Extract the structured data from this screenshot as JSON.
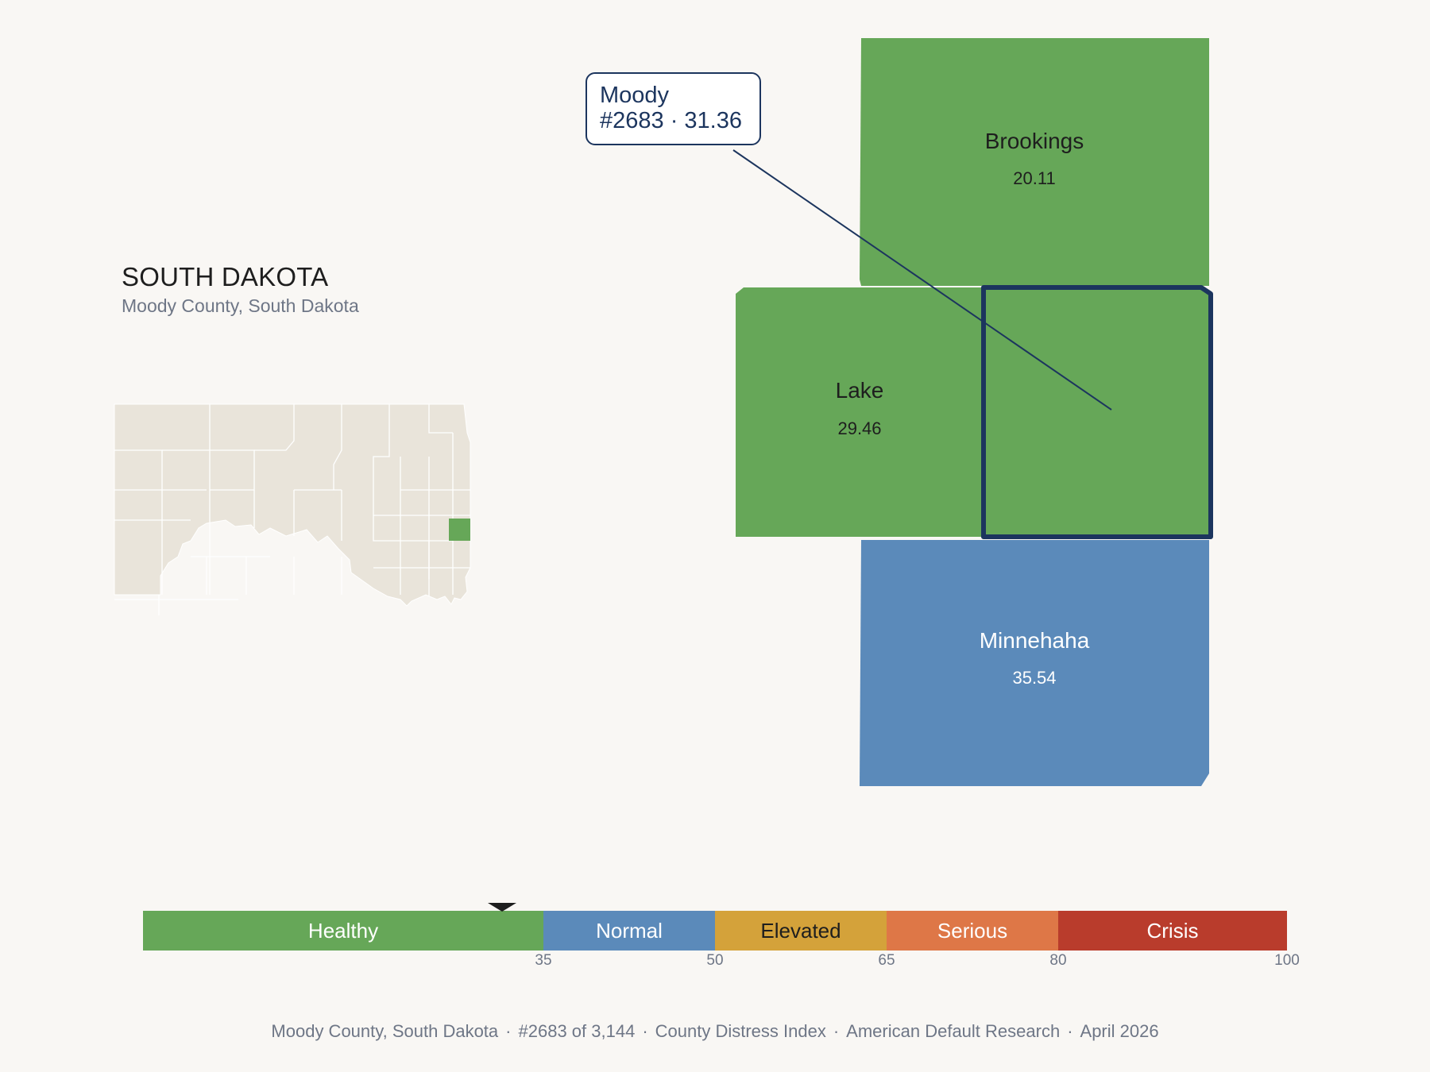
{
  "header": {
    "state": "SOUTH DAKOTA",
    "subtitle": "Moody County, South Dakota"
  },
  "colors": {
    "healthy": "#66a758",
    "normal": "#5b8aba",
    "elevated": "#d4a23a",
    "serious": "#de7747",
    "crisis": "#b93c2c",
    "highlight_outline": "#1c355e",
    "inset_fill": "#e9e4da"
  },
  "counties": [
    {
      "name": "Brookings",
      "value": "20.11",
      "category": "healthy"
    },
    {
      "name": "Lake",
      "value": "29.46",
      "category": "healthy"
    },
    {
      "name": "Moody",
      "value": "",
      "category": "healthy"
    },
    {
      "name": "Minnehaha",
      "value": "35.54",
      "category": "normal"
    }
  ],
  "callout": {
    "name": "Moody",
    "detail": "#2683 · 31.36"
  },
  "legend": {
    "marker_value": 31.36,
    "segments": [
      {
        "label": "Healthy",
        "from": 0,
        "to": 35,
        "color": "#66a758"
      },
      {
        "label": "Normal",
        "from": 35,
        "to": 50,
        "color": "#5b8aba"
      },
      {
        "label": "Elevated",
        "from": 50,
        "to": 65,
        "color": "#d4a23a"
      },
      {
        "label": "Serious",
        "from": 65,
        "to": 80,
        "color": "#de7747"
      },
      {
        "label": "Crisis",
        "from": 80,
        "to": 100,
        "color": "#b93c2c"
      }
    ],
    "ticks": [
      "35",
      "50",
      "65",
      "80",
      "100"
    ]
  },
  "footer": {
    "county": "Moody County, South Dakota",
    "rank": "#2683 of 3,144",
    "index": "County Distress Index",
    "source": "American Default Research",
    "date": "April 2026"
  }
}
